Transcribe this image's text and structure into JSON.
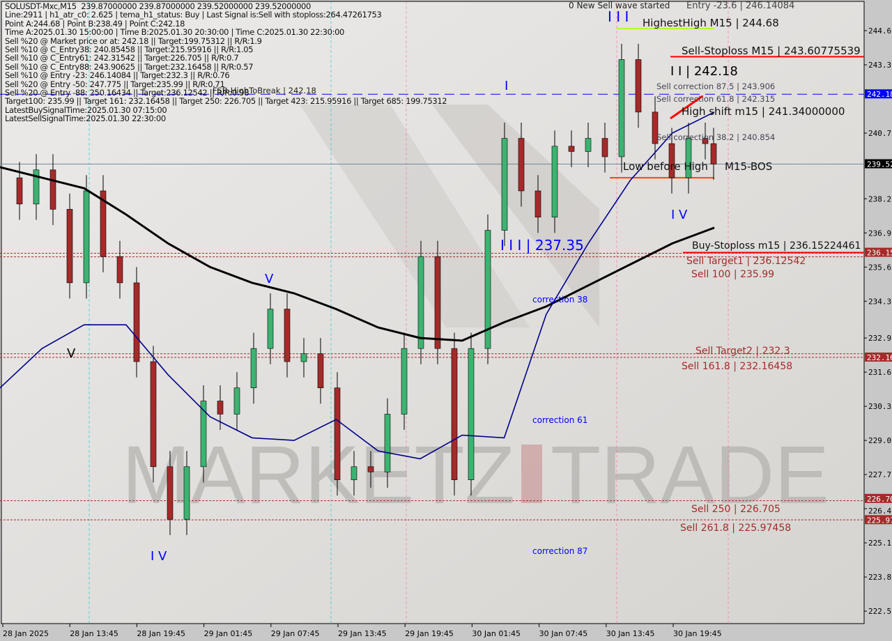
{
  "header": {
    "symbol_line": "SOLUSDT-Mxc,M15  239.87000000 239.87000000 239.52000000 239.52000000",
    "lines": [
      "Line:2911 | h1_atr_c0: 2.625 | tema_h1_status: Buy | Last Signal is:Sell with stoploss:264.47261753",
      "Point A:244.68 | Point B:238.49 | Point C:242.18",
      "Time A:2025.01.30 15:00:00 | Time B:2025.01.30 20:30:00 | Time C:2025.01.30 22:30:00",
      "Sell %20 @ Market price or at: 242.18 || Target:199.75312 || R/R:1.9",
      "Sell %10 @ C_Entry38: 240.85458 || Target:215.95916 || R/R:1.05",
      "Sell %10 @ C_Entry61: 242.31542 || Target:226.705 || R/R:0.7",
      "Sell %10 @ C_Entry88: 243.90625 || Target:232.16458 || R/R:0.57",
      "Sell %10 @ Entry -23: 246.14084 || Target:232.3 || R/R:0.76",
      "Sell %20 @ Entry -50: 247.775 || Target:235.99 || R/R:0.71",
      "Sell %20 @ Entry -88: 250.16434 || Target:236.12542 || R/R:0.98",
      "Target100: 235.99 || Target 161: 232.16458 || Target 250: 226.705 || Target 423: 215.95916 || Target 685: 199.75312",
      "LatestBuySignalTime:2025.01.30 07:15:00",
      "LatestSellSignalTime:2025.01.30 22:30:00"
    ]
  },
  "watermark": "MARKETZITRADE",
  "colors": {
    "bg": "#dcdad6",
    "up": "#3cb371",
    "down": "#a52a2a",
    "ma_slow": "#000000",
    "ma_fast": "#00008b",
    "stop": "#ff0000",
    "target": "#a52a2a",
    "blue_level": "#0000ff",
    "highest": "#adff2f",
    "low_before_high": "#ff4500"
  },
  "annotations": {
    "new_wave": "0 New Sell wave started",
    "entry_top": "Entry -23.6 | 246.14084",
    "highest_high": "HighestHigh   M15 | 244.68",
    "sell_stoploss": "Sell-Stoploss M15 | 243.60775539",
    "sell_corr_875": "Sell correction 87.5 | 243.906",
    "wave_ii": "I I | 242.18",
    "sell_corr_618": "Sell correction 61.8 | 242.315",
    "high_shift": "High shift m15 | 241.34000000",
    "sell_corr_382": "Sell correction 38.2 | 240.854",
    "low_before_high": "Low before High",
    "bos": "M15-BOS",
    "fsb": "FSB-HighToBreak | 242.18",
    "buy_stoploss": "Buy-Stoploss m15 | 236.15224461",
    "sell_target1": "Sell Target1 | 236.12542",
    "sell_100": "Sell 100 | 235.99",
    "sell_target2": "Sell Target2 | 232.3",
    "sell_1618": "Sell 161.8 | 232.16458",
    "sell_250": "Sell  250 | 226.705",
    "sell_2618": "Sell  261.8 | 225.97458",
    "corr38": "correction 38",
    "corr61": "correction 61",
    "corr87": "correction 87",
    "wave_iii_top": "I I I",
    "wave_i": "I",
    "wave_iii_237": "I I I | 237.35",
    "wave_v_mid": "V",
    "wave_v_left": "V",
    "wave_iv_left": "I V",
    "wave_iv_right": "I V"
  },
  "chart_data": {
    "type": "candlestick",
    "title": "SOLUSDT-Mxc,M15",
    "x_tick_labels": [
      "28 Jan 2025",
      "28 Jan 13:45",
      "28 Jan 19:45",
      "29 Jan 01:45",
      "29 Jan 07:45",
      "29 Jan 13:45",
      "29 Jan 19:45",
      "30 Jan 01:45",
      "30 Jan 07:45",
      "30 Jan 13:45",
      "30 Jan 19:45"
    ],
    "y_tick_labels": [
      "244.6",
      "243.3",
      "240.7",
      "238.2",
      "236.9",
      "235.6",
      "234.3",
      "232.9",
      "231.6",
      "230.3",
      "229.0",
      "227.7",
      "226.4",
      "225.1",
      "223.8",
      "222.5"
    ],
    "ylim": [
      222.3,
      245.8
    ],
    "price_tags": [
      {
        "value": "242.18",
        "color": "#0000ff"
      },
      {
        "value": "239.52",
        "color": "#000000"
      },
      {
        "value": "236.15",
        "color": "#a52a2a"
      },
      {
        "value": "232.16",
        "color": "#a52a2a"
      },
      {
        "value": "226.70",
        "color": "#a52a2a"
      },
      {
        "value": "225.97",
        "color": "#a52a2a"
      }
    ],
    "close_path": [
      239.0,
      238.0,
      239.3,
      237.8,
      235.0,
      238.5,
      236.0,
      235.0,
      232.0,
      228.0,
      226.0,
      228.0,
      230.5,
      230.0,
      231.0,
      232.5,
      234.0,
      232.0,
      232.3,
      231.0,
      227.5,
      228.0,
      227.8,
      230.0,
      232.5,
      236.0,
      232.5,
      227.5,
      232.5,
      237.0,
      240.5,
      238.5,
      237.5,
      240.2,
      240.0,
      240.5,
      239.8,
      243.5,
      241.5,
      240.3,
      239.0,
      240.5,
      240.3,
      239.52
    ],
    "ma_slow": [
      239.4,
      239.0,
      238.6,
      237.6,
      236.5,
      235.6,
      235.0,
      234.6,
      234.0,
      233.3,
      232.9,
      232.8,
      233.5,
      234.1,
      234.9,
      235.7,
      236.5,
      237.1
    ],
    "ma_fast": [
      231.0,
      232.5,
      233.4,
      233.4,
      231.5,
      229.9,
      229.1,
      229.0,
      229.8,
      228.6,
      228.3,
      229.2,
      229.1,
      233.8,
      236.5,
      238.9,
      240.7,
      241.5
    ],
    "levels": {
      "sell_stoploss": 243.60775539,
      "fsb_high_to_break": 242.18,
      "last_price": 239.52,
      "buy_stoploss": 236.15224461,
      "sell_target1": 236.12542,
      "sell_100": 235.99,
      "sell_target2": 232.3,
      "sell_1618": 232.16458,
      "sell_250": 226.705,
      "sell_2618": 225.97458,
      "highest_high": 244.68,
      "low_before_high": 239.0
    }
  }
}
